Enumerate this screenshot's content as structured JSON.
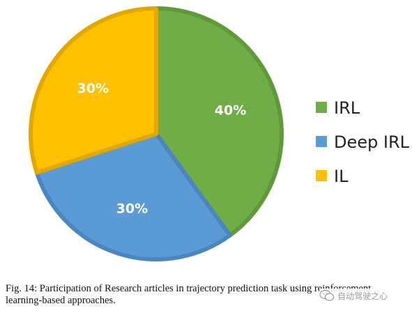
{
  "chart_data": {
    "type": "pie",
    "title": "",
    "slices": [
      {
        "label": "IRL",
        "value": 40,
        "display": "40%",
        "color": "#70AD47",
        "border": "#5E9A38"
      },
      {
        "label": "Deep IRL",
        "value": 30,
        "display": "30%",
        "color": "#5B9BD5",
        "border": "#4A86C0"
      },
      {
        "label": "IL",
        "value": 30,
        "display": "30%",
        "color": "#FFC000",
        "border": "#E0A800"
      }
    ],
    "legend_position": "right"
  },
  "caption": "Fig. 14: Participation of Research articles in trajectory prediction task using reinforcement learning-based approaches.",
  "watermark": "自动驾驶之心"
}
